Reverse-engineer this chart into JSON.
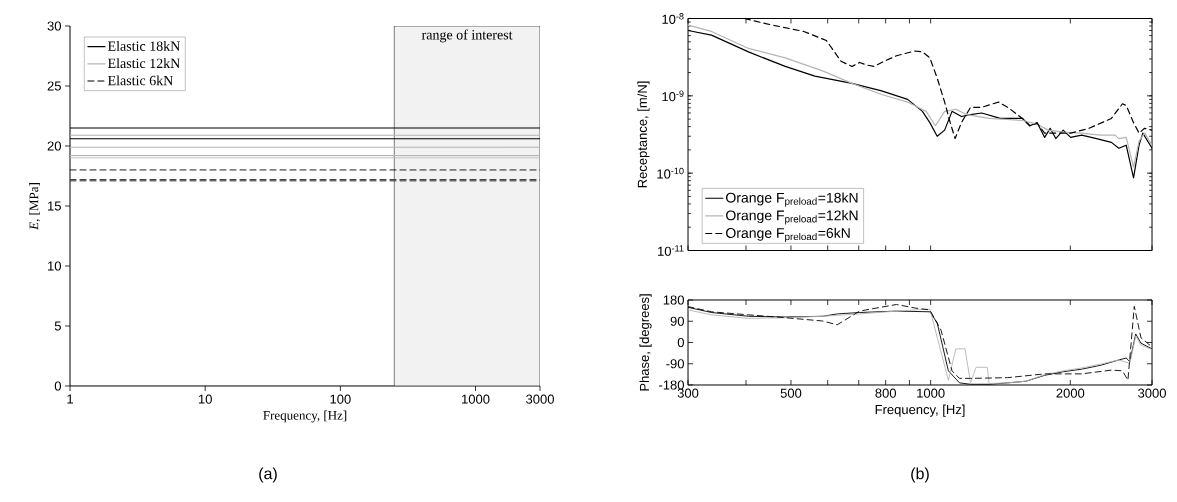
{
  "chart_data": [
    {
      "type": "line",
      "xlabel": "Frequency, [Hz]",
      "ylabel": "*E*, [MPa]",
      "log": "x",
      "xlim": [
        1,
        3000
      ],
      "ylim": [
        0,
        30
      ],
      "xticks": [
        1,
        10,
        100,
        1000,
        3000
      ],
      "yticks": [
        0,
        5,
        10,
        15,
        20,
        25,
        30
      ],
      "legend": "top left",
      "annotations": [
        "(a)"
      ],
      "bands": [
        {
          "axis": "x",
          "from": 250,
          "to": 3000,
          "label": "range of interest"
        }
      ],
      "series": [
        {
          "name": "Elastic 18kN",
          "color": "#000000",
          "line_style": "solid",
          "x": [
            1,
            3000
          ],
          "values": [
            21.5,
            21.5
          ]
        },
        {
          "name": "Elastic 12kN",
          "color": "#b4b4b4",
          "line_style": "solid",
          "x": [
            1,
            3000
          ],
          "values": [
            19.9,
            19.9
          ]
        },
        {
          "name": "Elastic 6kN",
          "color": "#000000",
          "line_style": "dashed",
          "x": [
            1,
            3000
          ],
          "values": [
            18.0,
            18.0
          ]
        },
        {
          "color": "#b4b4b4",
          "line_style": "solid",
          "x": [
            1,
            3000
          ],
          "values": [
            20.9,
            20.9
          ]
        },
        {
          "color": "#000000",
          "line_style": "solid",
          "x": [
            1,
            3000
          ],
          "values": [
            20.6,
            20.6
          ]
        },
        {
          "color": "#b4b4b4",
          "line_style": "solid",
          "x": [
            1,
            3000
          ],
          "values": [
            19.2,
            19.2
          ]
        },
        {
          "color": "#b4b4b4",
          "line_style": "solid",
          "x": [
            1,
            3000
          ],
          "values": [
            19.0,
            19.0
          ]
        },
        {
          "color": "#444444",
          "line_style": "dashed",
          "x": [
            1,
            3000
          ],
          "values": [
            17.2,
            17.2
          ]
        },
        {
          "color": "#444444",
          "line_style": "dashed",
          "x": [
            1,
            3000
          ],
          "values": [
            17.1,
            17.1
          ]
        }
      ]
    },
    {
      "type": "line",
      "ylabel": "Receptance, [m/N]",
      "log": "xy",
      "xlim": [
        300,
        3000
      ],
      "ylim": [
        1e-11,
        1e-08
      ],
      "xticks": [
        300,
        400,
        500,
        600,
        700,
        800,
        900,
        1000,
        2000,
        3000
      ],
      "yticks": [
        {
          "value": 1e-11,
          "label": "10$^{-11}$"
        },
        {
          "value": 1e-10,
          "label": "10$^{-10}$"
        },
        {
          "value": 1e-09,
          "label": "10$^{-9}$"
        },
        {
          "value": 1e-08,
          "label": "10$^{-8}$"
        }
      ],
      "tick_labels": "y",
      "legend": "bottom left",
      "annotations": [
        "(b)"
      ],
      "series": [
        {
          "name": "Orange F$_{preload}$=18kN",
          "color": "#000000",
          "line_style": "solid",
          "x": [
            300,
            337,
            405,
            486,
            563,
            677,
            784,
            892,
            960,
            996,
            1033,
            1072,
            1112,
            1165,
            1219,
            1288,
            1413,
            1577,
            1636,
            1697,
            1761,
            1810,
            1861,
            1931,
            2003,
            2116,
            2278,
            2452,
            2544,
            2639,
            2737,
            2813,
            2866,
            3000
          ],
          "values": [
            7e-09,
            6.1e-09,
            3.7e-09,
            2.4e-09,
            1.8e-09,
            1.45e-09,
            1.16e-09,
            9e-10,
            6.3e-10,
            4.5e-10,
            3e-10,
            3.6e-10,
            6.3e-10,
            5.4e-10,
            5.7e-10,
            6e-10,
            5.1e-10,
            5.1e-10,
            4.1e-10,
            4.5e-10,
            2.9e-10,
            3.8e-10,
            2.8e-10,
            3.6e-10,
            2.9e-10,
            3.1e-10,
            2.8e-10,
            2.5e-10,
            2.1e-10,
            2.3e-10,
            8.7e-11,
            2.3e-10,
            3.3e-10,
            2.1e-10
          ]
        },
        {
          "name": "Orange F$_{preload}$=12kN",
          "color": "#b4b4b4",
          "line_style": "solid",
          "x": [
            300,
            337,
            405,
            486,
            585,
            677,
            784,
            892,
            978,
            1024,
            1072,
            1133,
            1197,
            1337,
            1577,
            1697,
            1793,
            1931,
            2116,
            2320,
            2498,
            2544,
            2639,
            2737,
            2813,
            2892,
            3000
          ],
          "values": [
            8.2e-09,
            6.8e-09,
            4.1e-09,
            3.1e-09,
            2.1e-09,
            1.45e-09,
            1.04e-09,
            8.3e-10,
            6.3e-10,
            4.1e-10,
            6.3e-10,
            6.7e-10,
            5.7e-10,
            5.1e-10,
            4.8e-10,
            4.3e-10,
            3.6e-10,
            3.4e-10,
            3.3e-10,
            3.1e-10,
            3.1e-10,
            2.8e-10,
            2.9e-10,
            1.2e-10,
            2.6e-10,
            3.3e-10,
            2.3e-10
          ]
        },
        {
          "name": "Orange F$_{preload}$=6kN",
          "color": "#000000",
          "line_style": "dashed",
          "x": [
            397,
            444,
            533,
            596,
            641,
            677,
            703,
            729,
            756,
            784,
            844,
            925,
            960,
            996,
            1033,
            1072,
            1102,
            1129,
            1165,
            1219,
            1288,
            1400,
            1466,
            1577,
            1636,
            1697,
            1761,
            1861,
            2003,
            2195,
            2452,
            2591,
            2639,
            2737,
            2813,
            2892,
            3000
          ],
          "values": [
            1e-08,
            8.5e-09,
            6.8e-09,
            5.2e-09,
            2.8e-09,
            2.4e-09,
            2.7e-09,
            2.5e-09,
            2.4e-09,
            2.7e-09,
            3.3e-09,
            3.8e-09,
            3.7e-09,
            3.1e-09,
            1.7e-09,
            8.3e-10,
            4.5e-10,
            2.8e-10,
            4.5e-10,
            7.1e-10,
            7.1e-10,
            8.3e-10,
            7.1e-10,
            5.1e-10,
            4.1e-10,
            4.4e-10,
            3.3e-10,
            3.3e-10,
            3.3e-10,
            3.8e-10,
            5.1e-10,
            7.9e-10,
            7.5e-10,
            4.5e-10,
            3.3e-10,
            3.8e-10,
            3.6e-10
          ]
        }
      ]
    },
    {
      "type": "line",
      "xlabel": "Frequency, [Hz]",
      "ylabel": "Phase, [degrees]",
      "log": "x",
      "xlim": [
        300,
        3000
      ],
      "ylim": [
        -180,
        180
      ],
      "xticks": [
        300,
        {
          "value": 400,
          "label": null
        },
        500,
        {
          "value": 600,
          "label": null
        },
        {
          "value": 700,
          "label": null
        },
        800,
        {
          "value": 900,
          "label": null
        },
        1000,
        2000,
        3000
      ],
      "yticks": [
        -180,
        -90,
        0,
        90,
        180
      ],
      "series": [
        {
          "color": "#000000",
          "line_style": "solid",
          "x": [
            300,
            337,
            405,
            486,
            585,
            629,
            703,
            844,
            996,
            1033,
            1092,
            1154,
            1219,
            1337,
            1466,
            1606,
            1761,
            1931,
            2116,
            2320,
            2544,
            2639,
            2687,
            2767,
            2840,
            3000
          ],
          "values": [
            149,
            127,
            111,
            108,
            111,
            121,
            127,
            133,
            130,
            83,
            -120,
            -171,
            -177,
            -177,
            -171,
            -164,
            -139,
            -124,
            -113,
            -97,
            -74,
            -66,
            -81,
            36,
            -3,
            -27
          ]
        },
        {
          "color": "#b4b4b4",
          "line_style": "solid",
          "x": [
            300,
            337,
            405,
            486,
            585,
            703,
            844,
            996,
            1014,
            1092,
            1133,
            1186,
            1219,
            1253,
            1324,
            1337,
            1466,
            1606,
            1761,
            1931,
            2116,
            2320,
            2544,
            2687,
            2767,
            2840,
            3000
          ],
          "values": [
            138,
            117,
            102,
            105,
            111,
            121,
            133,
            142,
            83,
            -160,
            -27,
            -27,
            -171,
            -105,
            -105,
            -174,
            -171,
            -164,
            -136,
            -120,
            -108,
            -92,
            -74,
            -89,
            28,
            -11,
            -30
          ]
        },
        {
          "color": "#000000",
          "line_style": "dashed",
          "x": [
            300,
            337,
            405,
            486,
            585,
            629,
            703,
            844,
            925,
            996,
            1053,
            1112,
            1154,
            1219,
            1466,
            1761,
            2116,
            2452,
            2591,
            2662,
            2747,
            2840,
            3000
          ],
          "values": [
            152,
            130,
            117,
            105,
            91,
            75,
            133,
            161,
            146,
            138,
            52,
            -120,
            -152,
            -152,
            -149,
            -133,
            -133,
            -117,
            -120,
            -160,
            153,
            20,
            -19
          ]
        }
      ]
    }
  ]
}
